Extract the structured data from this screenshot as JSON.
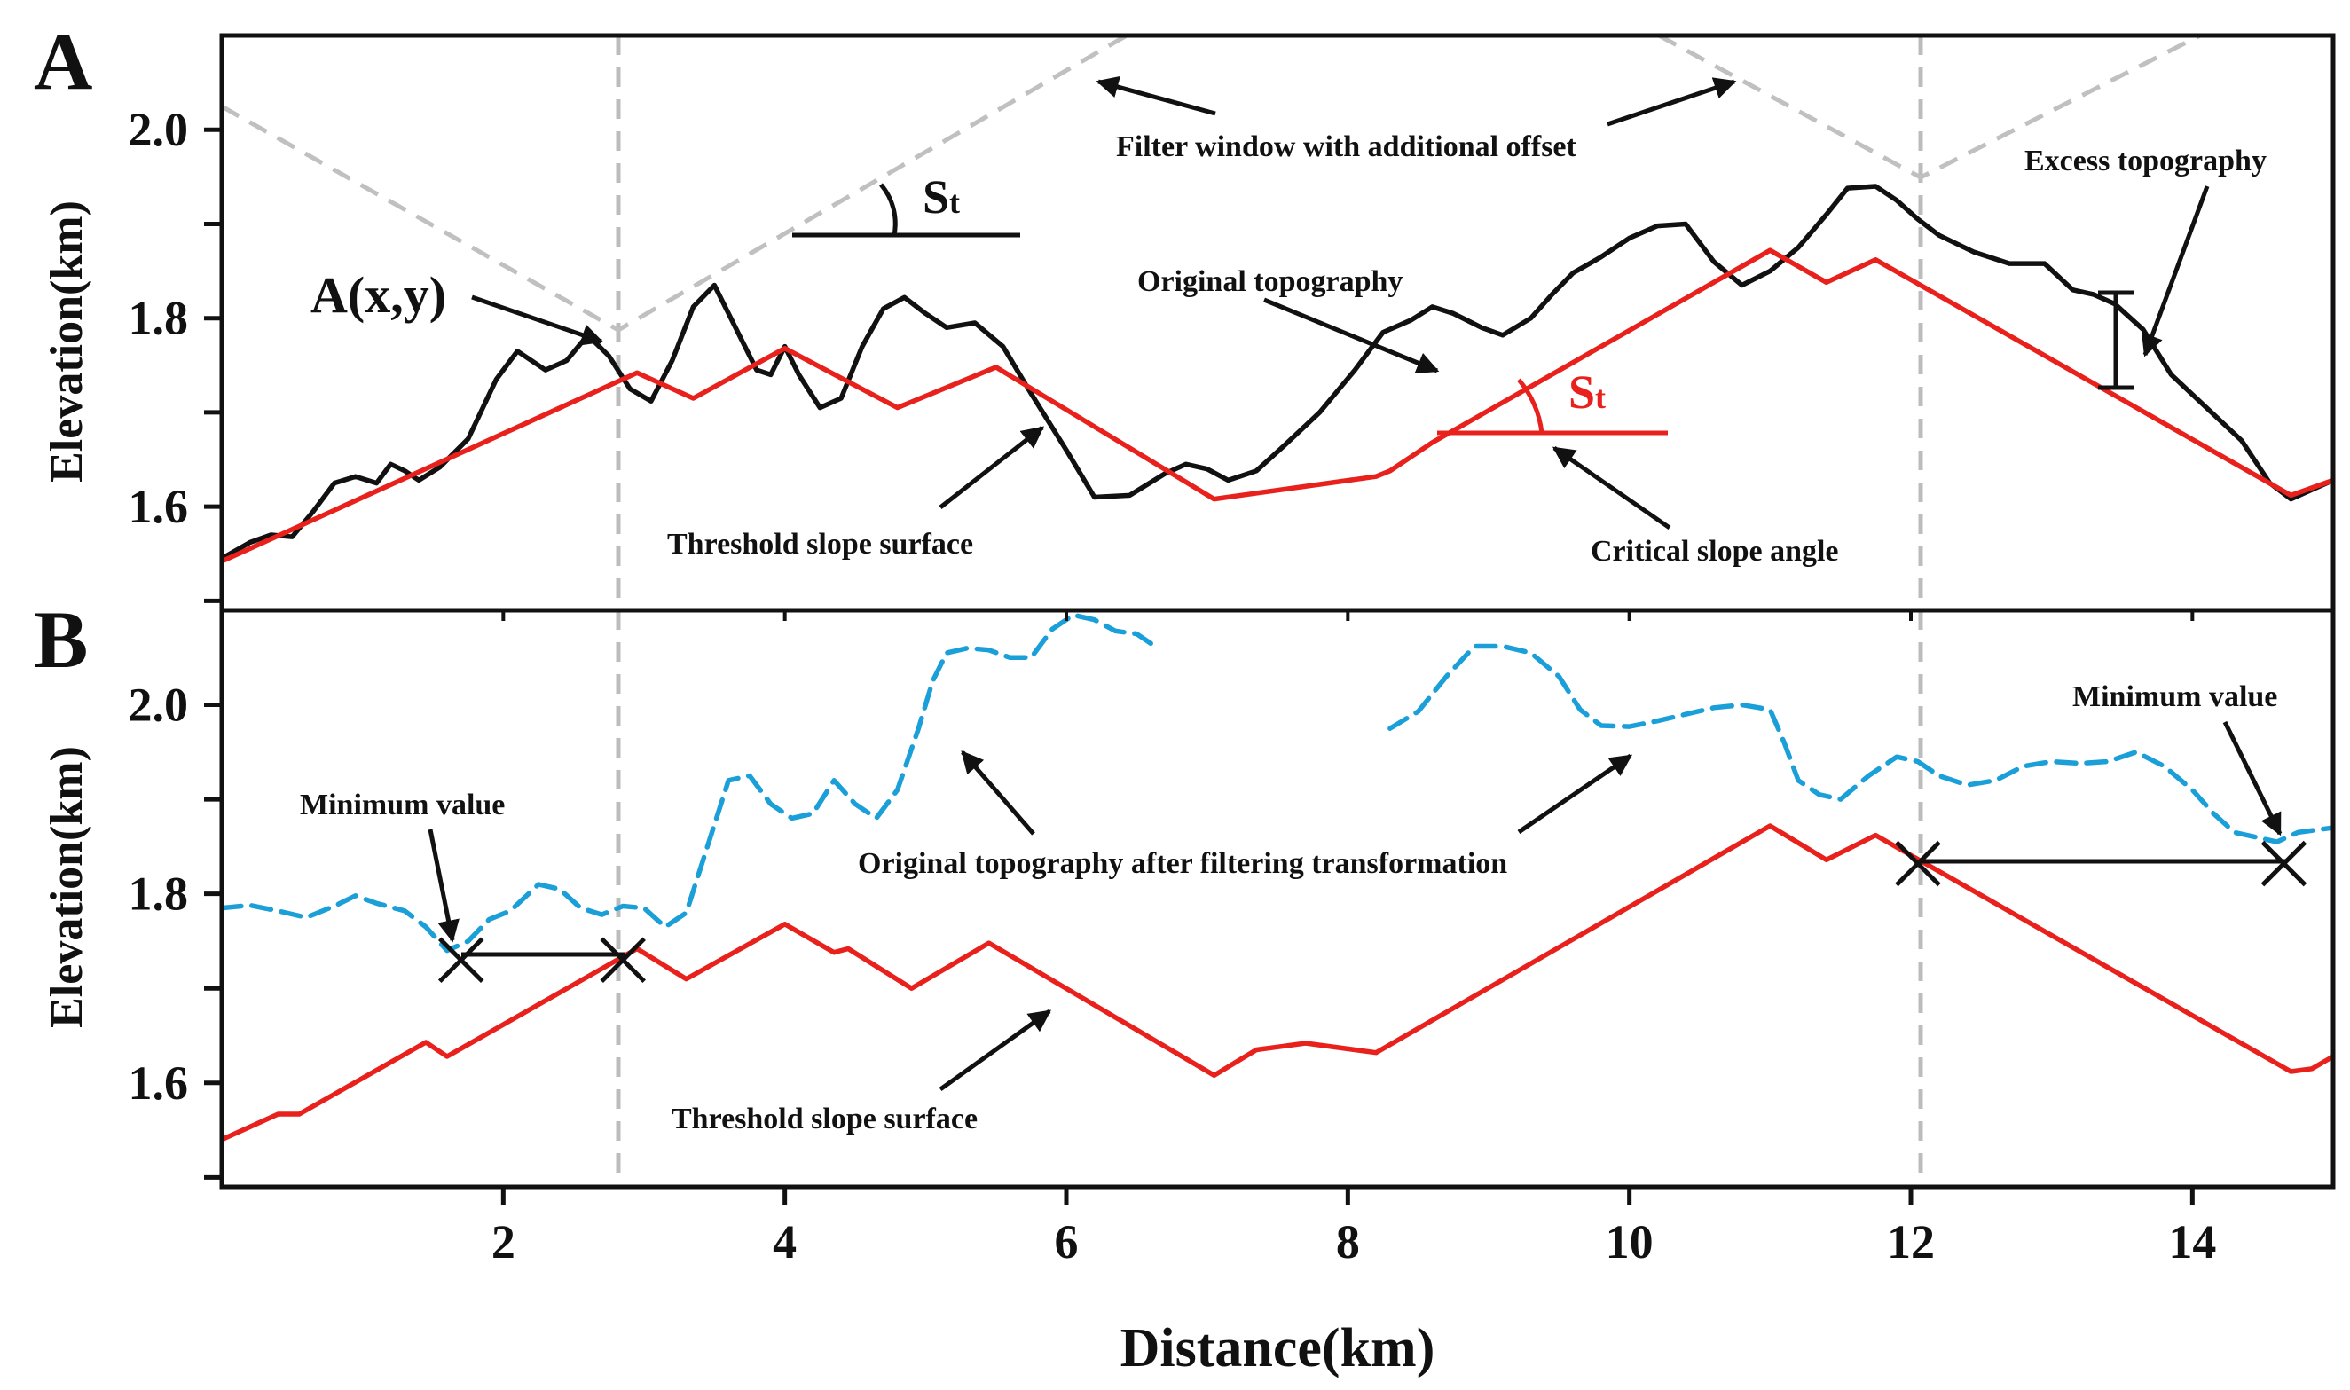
{
  "chart_data": {
    "type": "line",
    "xlabel": "Distance(km)",
    "xlim": [
      0,
      15
    ],
    "x_ticks": [
      2,
      4,
      6,
      8,
      10,
      12,
      14
    ],
    "colors": {
      "original": "#111111",
      "threshold": "#e8211c",
      "filtered": "#1b9fd8",
      "guide": "#b8b8b8"
    },
    "panels": [
      {
        "label": "A",
        "ylabel": "Elevation(km)",
        "ylim": [
          1.49,
          2.1
        ],
        "y_ticks": [
          1.6,
          1.8,
          2.0
        ],
        "series": [
          {
            "name": "Original topography",
            "style": "solid-black",
            "x": [
              0,
              0.2,
              0.35,
              0.5,
              0.65,
              0.8,
              0.95,
              1.1,
              1.2,
              1.3,
              1.4,
              1.55,
              1.75,
              1.95,
              2.1,
              2.3,
              2.45,
              2.6,
              2.75,
              2.9,
              3.05,
              3.2,
              3.35,
              3.5,
              3.65,
              3.8,
              3.9,
              4.0,
              4.1,
              4.25,
              4.4,
              4.55,
              4.7,
              4.85,
              5.0,
              5.15,
              5.35,
              5.55,
              5.75,
              6.0,
              6.2,
              6.45,
              6.7,
              6.85,
              7.0,
              7.15,
              7.35,
              7.55,
              7.8,
              8.05,
              8.25,
              8.45,
              8.6,
              8.75,
              8.95,
              9.1,
              9.3,
              9.45,
              9.6,
              9.8,
              10.0,
              10.2,
              10.4,
              10.6,
              10.8,
              11.0,
              11.2,
              11.4,
              11.55,
              11.75,
              11.9,
              12.05,
              12.2,
              12.45,
              12.7,
              12.95,
              13.15,
              13.3,
              13.45,
              13.65,
              13.85,
              14.1,
              14.35,
              14.55,
              14.7,
              14.85,
              15.0
            ],
            "y": [
              1.545,
              1.562,
              1.57,
              1.568,
              1.595,
              1.625,
              1.632,
              1.625,
              1.645,
              1.638,
              1.628,
              1.642,
              1.672,
              1.735,
              1.765,
              1.745,
              1.755,
              1.782,
              1.76,
              1.725,
              1.712,
              1.755,
              1.812,
              1.835,
              1.79,
              1.745,
              1.74,
              1.77,
              1.74,
              1.705,
              1.715,
              1.77,
              1.81,
              1.822,
              1.805,
              1.79,
              1.795,
              1.77,
              1.72,
              1.66,
              1.61,
              1.612,
              1.635,
              1.645,
              1.64,
              1.628,
              1.638,
              1.665,
              1.7,
              1.745,
              1.785,
              1.798,
              1.812,
              1.805,
              1.79,
              1.782,
              1.8,
              1.825,
              1.848,
              1.865,
              1.885,
              1.898,
              1.9,
              1.86,
              1.835,
              1.85,
              1.875,
              1.91,
              1.938,
              1.94,
              1.925,
              1.905,
              1.888,
              1.87,
              1.858,
              1.858,
              1.83,
              1.825,
              1.815,
              1.788,
              1.74,
              1.705,
              1.67,
              1.625,
              1.608,
              1.618,
              1.628
            ]
          },
          {
            "name": "Threshold slope surface",
            "style": "solid-red",
            "x": [
              0,
              2.95,
              3.35,
              4.0,
              4.8,
              5.5,
              7.05,
              8.2,
              8.3,
              8.6,
              11.0,
              11.4,
              11.75,
              14.7,
              15.0
            ],
            "y": [
              1.542,
              1.742,
              1.715,
              1.768,
              1.705,
              1.748,
              1.608,
              1.632,
              1.638,
              1.668,
              1.872,
              1.838,
              1.862,
              1.612,
              1.628
            ]
          }
        ],
        "annotations": [
          {
            "id": "a-xy",
            "text": "A(x,y)"
          },
          {
            "id": "filter-window",
            "text": "Filter window with additional offset"
          },
          {
            "id": "excess",
            "text": "Excess topography"
          },
          {
            "id": "original",
            "text": "Original topography"
          },
          {
            "id": "threshold",
            "text": "Threshold slope surface"
          },
          {
            "id": "critical",
            "text": "Critical slope angle"
          },
          {
            "id": "st-black",
            "text": "S",
            "sub": "t"
          },
          {
            "id": "st-red",
            "text": "S",
            "sub": "t"
          }
        ]
      },
      {
        "label": "B",
        "ylabel": "Elevation(km)",
        "ylim": [
          1.49,
          2.1
        ],
        "y_ticks": [
          1.6,
          1.8,
          2.0
        ],
        "series": [
          {
            "name": "Threshold slope surface",
            "style": "solid-red",
            "x": [
              0,
              0.4,
              0.55,
              1.45,
              1.6,
              2.95,
              3.3,
              4.0,
              4.35,
              4.45,
              4.9,
              5.45,
              7.05,
              7.35,
              7.5,
              7.7,
              8.2,
              11.0,
              11.4,
              11.75,
              14.7,
              14.85,
              15.0
            ],
            "y": [
              1.54,
              1.567,
              1.567,
              1.643,
              1.628,
              1.742,
              1.71,
              1.768,
              1.738,
              1.742,
              1.7,
              1.748,
              1.608,
              1.635,
              1.638,
              1.642,
              1.632,
              1.872,
              1.836,
              1.862,
              1.612,
              1.615,
              1.628
            ]
          },
          {
            "name": "Original topography after filtering transformation",
            "style": "dashed-blue",
            "x": [
              0,
              0.2,
              0.4,
              0.6,
              0.8,
              0.95,
              1.1,
              1.3,
              1.45,
              1.6,
              1.75,
              1.9,
              2.05,
              2.25,
              2.4,
              2.55,
              2.7,
              2.85,
              3.0,
              3.15,
              3.3,
              3.45,
              3.6,
              3.75,
              3.9,
              4.05,
              4.2,
              4.35,
              4.5,
              4.65,
              4.8,
              4.95,
              5.05,
              5.15,
              5.3,
              5.45,
              5.6,
              5.75,
              5.9,
              6.05,
              6.2,
              6.35,
              6.5,
              6.6
            ],
            "y": [
              1.785,
              1.788,
              1.782,
              1.775,
              1.787,
              1.798,
              1.79,
              1.782,
              1.765,
              1.74,
              1.75,
              1.773,
              1.782,
              1.81,
              1.805,
              1.785,
              1.778,
              1.787,
              1.785,
              1.765,
              1.78,
              1.85,
              1.92,
              1.925,
              1.895,
              1.88,
              1.885,
              1.92,
              1.895,
              1.88,
              1.91,
              1.975,
              2.025,
              2.055,
              2.06,
              2.058,
              2.05,
              2.05,
              2.08,
              2.095,
              2.09,
              2.078,
              2.075,
              2.065
            ]
          },
          {
            "name": "Original topography after filtering transformation",
            "style": "dashed-blue",
            "x": [
              8.3,
              8.5,
              8.7,
              8.9,
              9.1,
              9.3,
              9.5,
              9.65,
              9.8,
              10.0,
              10.2,
              10.4,
              10.6,
              10.8,
              11.0,
              11.1,
              11.2,
              11.35,
              11.5,
              11.7,
              11.9,
              12.05,
              12.2,
              12.4,
              12.6,
              12.8,
              13.0,
              13.2,
              13.4,
              13.6,
              13.8,
              14.0,
              14.15,
              14.3,
              14.45,
              14.6,
              14.75,
              14.9,
              15.0
            ],
            "y": [
              1.975,
              1.993,
              2.03,
              2.062,
              2.062,
              2.055,
              2.03,
              1.995,
              1.978,
              1.977,
              1.983,
              1.99,
              1.997,
              2.0,
              1.995,
              1.96,
              1.92,
              1.905,
              1.9,
              1.925,
              1.945,
              1.94,
              1.925,
              1.915,
              1.92,
              1.935,
              1.94,
              1.938,
              1.94,
              1.95,
              1.935,
              1.91,
              1.885,
              1.865,
              1.86,
              1.855,
              1.865,
              1.868,
              1.87
            ]
          }
        ],
        "markers": [
          {
            "x": 1.7,
            "y": 1.73
          },
          {
            "x": 2.85,
            "y": 1.73
          },
          {
            "x": 12.05,
            "y": 1.832
          },
          {
            "x": 14.65,
            "y": 1.832
          }
        ],
        "annotations": [
          {
            "id": "min-left",
            "text": "Minimum value"
          },
          {
            "id": "min-right",
            "text": "Minimum value"
          },
          {
            "id": "filtered",
            "text": "Original topography after filtering transformation"
          },
          {
            "id": "threshold-b",
            "text": "Threshold slope surface"
          }
        ]
      }
    ]
  }
}
